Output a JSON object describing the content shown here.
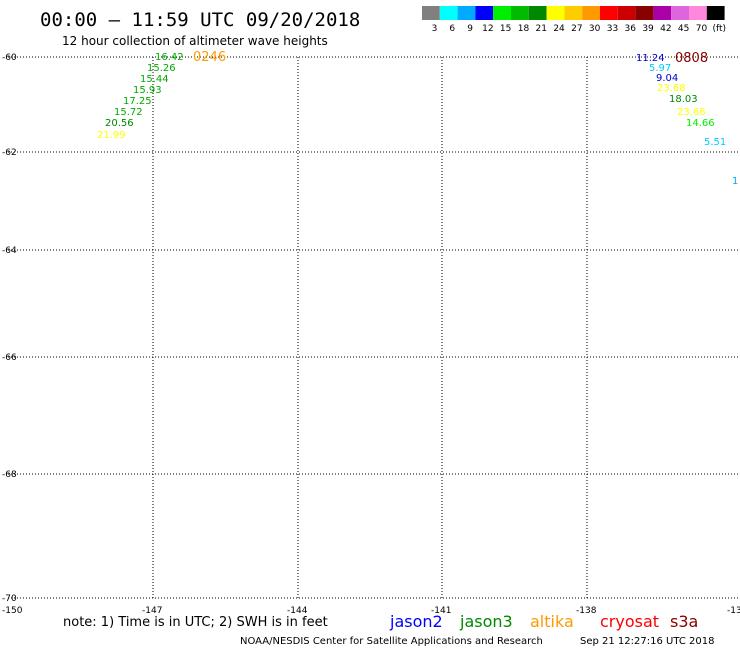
{
  "title": "00:00 – 11:59 UTC 09/20/2018",
  "subtitle": "12 hour collection of altimeter wave heights",
  "legend": {
    "colors": [
      "#808080",
      "#00ffff",
      "#00aaff",
      "#0000ff",
      "#00ee00",
      "#00bb00",
      "#008800",
      "#ffff00",
      "#ffcc00",
      "#ff9900",
      "#ff0000",
      "#cc0000",
      "#880000",
      "#aa00aa",
      "#dd66dd",
      "#ff88dd",
      "#000000"
    ],
    "labels": [
      "3",
      "6",
      "9",
      "12",
      "15",
      "18",
      "21",
      "24",
      "27",
      "30",
      "33",
      "36",
      "39",
      "42",
      "45",
      "70",
      "(ft)"
    ]
  },
  "axes": {
    "lat_ticks": [
      "-60",
      "-62",
      "-64",
      "-66",
      "-68",
      "-70"
    ],
    "lon_ticks": [
      "-150",
      "-147",
      "-144",
      "-141",
      "-138",
      "-13"
    ]
  },
  "passes": [
    {
      "time_label": "0246",
      "time_color": "#ff9900",
      "values": [
        {
          "text": "16.42",
          "color": "#00aa00"
        },
        {
          "text": "15.26",
          "color": "#00aa00"
        },
        {
          "text": "15.44",
          "color": "#00aa00"
        },
        {
          "text": "15.93",
          "color": "#00aa00"
        },
        {
          "text": "17.25",
          "color": "#00aa00"
        },
        {
          "text": "15.72",
          "color": "#00aa00"
        },
        {
          "text": "20.56",
          "color": "#008800"
        },
        {
          "text": "21.99",
          "color": "#ffff00"
        }
      ]
    },
    {
      "time_label": "0808",
      "time_color": "#880000",
      "values": [
        {
          "text": "11.24",
          "color": "#0000cc"
        },
        {
          "text": "5.97",
          "color": "#00ccff"
        },
        {
          "text": "9.04",
          "color": "#0000cc"
        },
        {
          "text": "23.68",
          "color": "#ffff00"
        },
        {
          "text": "18.03",
          "color": "#008800"
        },
        {
          "text": "23.66",
          "color": "#ffff00"
        },
        {
          "text": "14.66",
          "color": "#00ee00"
        },
        {
          "text": "5.51",
          "color": "#00ccff"
        },
        {
          "text": "1",
          "color": "#00aaff"
        }
      ]
    }
  ],
  "note": "note: 1) Time is in UTC; 2) SWH is in feet",
  "satellites": [
    {
      "name": "jason2",
      "color": "#0000ff"
    },
    {
      "name": "jason3",
      "color": "#008800"
    },
    {
      "name": "altika",
      "color": "#ff9900"
    },
    {
      "name": "cryosat",
      "color": "#ff0000"
    },
    {
      "name": "s3a",
      "color": "#880000"
    }
  ],
  "credit": "NOAA/NESDIS Center for Satellite Applications and Research",
  "timestamp": "Sep 21 12:27:16 UTC 2018"
}
